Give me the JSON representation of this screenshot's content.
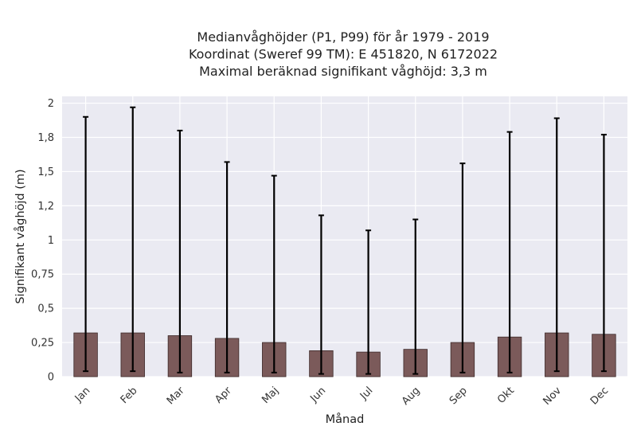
{
  "chart_data": {
    "type": "bar",
    "title_lines": [
      "Medianvåghöjder (P1, P99) för år 1979 - 2019",
      "Koordinat (Sweref 99 TM): E 451820, N 6172022",
      "Maximal beräknad signifikant våghöjd: 3,3 m"
    ],
    "xlabel": "Månad",
    "ylabel": "Signifikant våghöjd (m)",
    "categories": [
      "Jan",
      "Feb",
      "Mar",
      "Apr",
      "Maj",
      "Jun",
      "Jul",
      "Aug",
      "Sep",
      "Okt",
      "Nov",
      "Dec"
    ],
    "series": [
      {
        "values": [
          0.32,
          0.32,
          0.3,
          0.28,
          0.25,
          0.19,
          0.18,
          0.2,
          0.25,
          0.29,
          0.32,
          0.31
        ],
        "p1": [
          0.04,
          0.04,
          0.03,
          0.03,
          0.03,
          0.02,
          0.02,
          0.02,
          0.03,
          0.03,
          0.04,
          0.04
        ],
        "p99": [
          1.9,
          1.97,
          1.8,
          1.57,
          1.47,
          1.18,
          1.07,
          1.15,
          1.56,
          1.79,
          1.89,
          1.77
        ]
      }
    ],
    "ylim": [
      0,
      2.05
    ],
    "yticks": [
      0,
      0.25,
      0.5,
      0.75,
      1,
      1.25,
      1.5,
      1.75,
      2
    ],
    "ytick_labels": [
      "0",
      "0,25",
      "0,5",
      "0,75",
      "1",
      "1,2",
      "1,5",
      "1,8",
      "2"
    ],
    "grid": true,
    "colors": {
      "bar": "#7b5a5a",
      "bar_edge": "#3d2a2a",
      "errorbar": "#000000",
      "plot_bg": "#eaeaf2",
      "grid": "#ffffff"
    }
  }
}
